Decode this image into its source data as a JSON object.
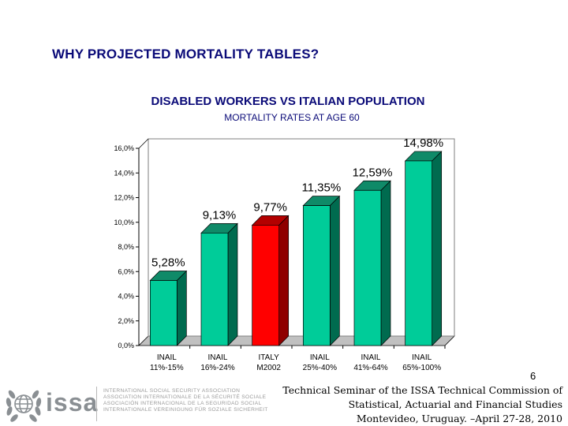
{
  "slide": {
    "title": "WHY PROJECTED MORTALITY TABLES?",
    "page_number": "6"
  },
  "footer": {
    "line1": "Technical Seminar of the ISSA Technical Commission of",
    "line2": "Statistical, Actuarial and Financial Studies",
    "line3": "Montevideo, Uruguay. –April 27-28, 2010"
  },
  "logo": {
    "wordmark": "issa",
    "association_lines": [
      "INTERNATIONAL SOCIAL SECURITY ASSOCIATION",
      "ASSOCIATION INTERNATIONALE DE LA SÉCURITÉ SOCIALE",
      "ASOCIACIÓN INTERNACIONAL DE LA SEGURIDAD SOCIAL",
      "INTERNATIONALE VEREINIGUNG FÜR SOZIALE SICHERHEIT"
    ]
  },
  "chart_data": {
    "type": "bar",
    "title": "DISABLED WORKERS VS ITALIAN POPULATION",
    "subtitle": "MORTALITY RATES AT AGE 60",
    "categories": [
      [
        "INAIL",
        "11%-15%"
      ],
      [
        "INAIL",
        "16%-24%"
      ],
      [
        "ITALY",
        "M2002"
      ],
      [
        "INAIL",
        "25%-40%"
      ],
      [
        "INAIL",
        "41%-64%"
      ],
      [
        "INAIL",
        "65%-100%"
      ]
    ],
    "values": [
      5.28,
      9.13,
      9.77,
      11.35,
      12.59,
      14.98
    ],
    "data_labels": [
      "5,28%",
      "9,13%",
      "9,77%",
      "11,35%",
      "12,59%",
      "14,98%"
    ],
    "y_ticks": [
      "0,0%",
      "2,0%",
      "4,0%",
      "6,0%",
      "8,0%",
      "10,0%",
      "12,0%",
      "14,0%",
      "16,0%"
    ],
    "ylim": [
      0,
      16
    ],
    "grid": false,
    "bar_style": "3d",
    "colors": {
      "default_front": "#00cc99",
      "default_side": "#006b4f",
      "default_top": "#0f8a68",
      "highlight_front": "#ff0000",
      "highlight_side": "#8f0000",
      "highlight_top": "#b30000",
      "wall_line": "#7f7f7f",
      "floor": "#c0c0c0"
    },
    "highlight_index": 2
  }
}
